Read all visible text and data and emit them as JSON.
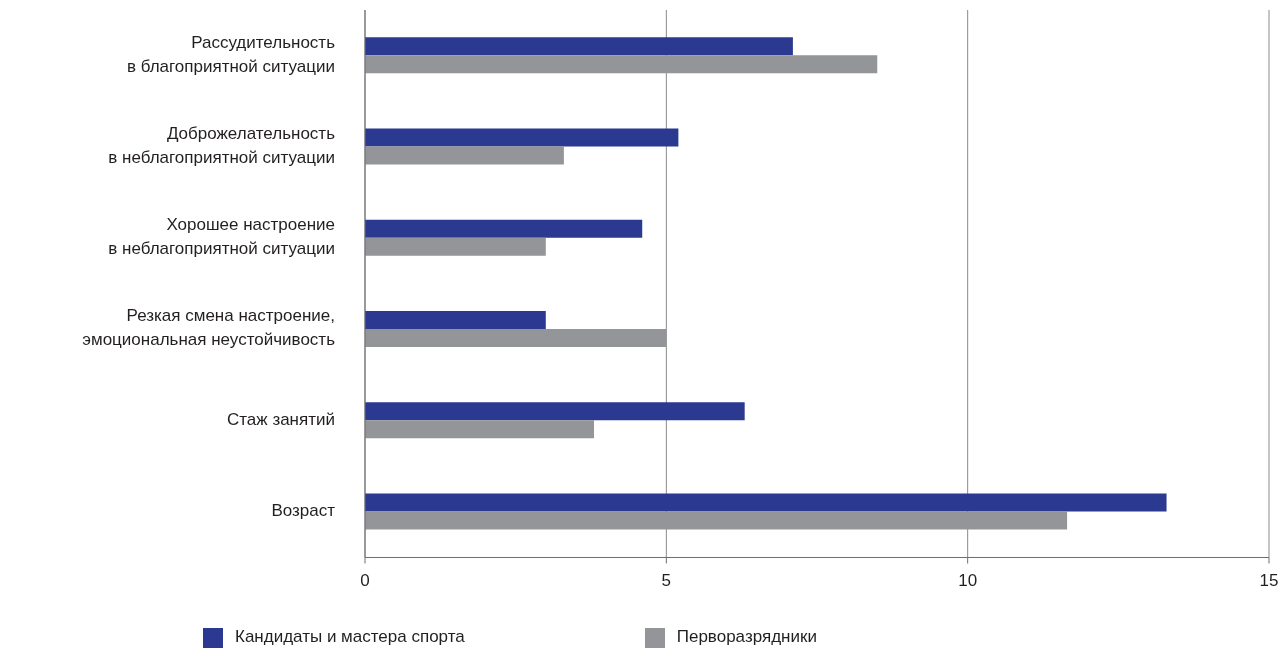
{
  "chart_data": {
    "type": "bar",
    "orientation": "horizontal",
    "categories": [
      "Рассудительность\nв благоприятной ситуации",
      "Доброжелательность\nв неблагоприятной ситуации",
      "Хорошее настроение\nв неблагоприятной ситуации",
      "Резкая смена настроение,\nэмоциональная неустойчивость",
      "Стаж занятий",
      "Возраст"
    ],
    "series": [
      {
        "name": "Кандидаты и мастера спорта",
        "color": "#2b3990",
        "values": [
          7.1,
          5.2,
          4.6,
          3.0,
          6.3,
          13.3
        ]
      },
      {
        "name": "Перворазрядники",
        "color": "#939598",
        "values": [
          8.5,
          3.3,
          3.0,
          5.0,
          3.8,
          11.65
        ]
      }
    ],
    "xlim": [
      0,
      15
    ],
    "xticks": [
      0,
      5,
      10,
      15
    ],
    "grid": "x",
    "legend": "bottom"
  }
}
